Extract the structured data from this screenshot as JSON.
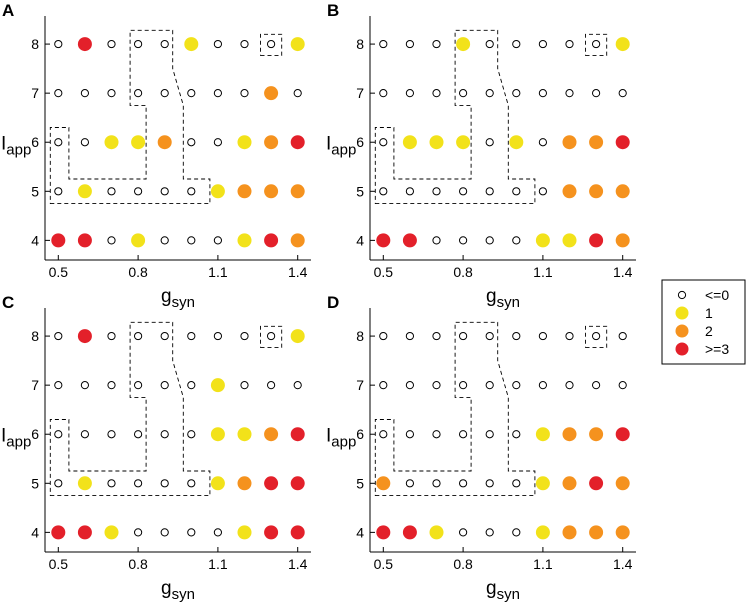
{
  "legend": {
    "items": [
      {
        "label": "<=0",
        "color": "#ffffff",
        "marker": "open"
      },
      {
        "label": "1",
        "color": "#f2e21a",
        "marker": "filled"
      },
      {
        "label": "2",
        "color": "#f5921e",
        "marker": "filled"
      },
      {
        "label": ">=3",
        "color": "#e3202a",
        "marker": "filled"
      }
    ]
  },
  "chart_data": [
    {
      "type": "scatter",
      "panel": "A",
      "xlabel": "g",
      "xlabel_sub": "syn",
      "ylabel": "I",
      "ylabel_sub": "app",
      "x": [
        0.5,
        0.6,
        0.7,
        0.8,
        0.9,
        1.0,
        1.1,
        1.2,
        1.3,
        1.4
      ],
      "y": [
        4,
        5,
        6,
        7,
        8
      ],
      "xticks": [
        0.5,
        0.8,
        1.1,
        1.4
      ],
      "xtick_labels": [
        "0.5",
        "0.8",
        "1.1",
        "1.4"
      ],
      "yticks": [
        4,
        5,
        6,
        7,
        8
      ],
      "ytick_labels": [
        "4",
        "5",
        "6",
        "7",
        "8"
      ],
      "xlim": [
        0.45,
        1.45
      ],
      "ylim": [
        3.6,
        8.45
      ],
      "categories": {
        "-1": "<=0",
        "1": "1",
        "2": "2",
        "3": ">=3"
      },
      "values": [
        [
          3,
          3,
          -1,
          1,
          -1,
          -1,
          -1,
          1,
          3,
          2
        ],
        [
          -1,
          1,
          -1,
          -1,
          -1,
          -1,
          1,
          2,
          2,
          2
        ],
        [
          -1,
          -1,
          1,
          1,
          2,
          -1,
          -1,
          1,
          2,
          3
        ],
        [
          -1,
          -1,
          -1,
          -1,
          -1,
          -1,
          -1,
          -1,
          2,
          -1
        ],
        [
          -1,
          3,
          -1,
          -1,
          -1,
          1,
          -1,
          -1,
          -1,
          1
        ]
      ],
      "dashed_boxes": [
        [
          [
            0.47,
            4.75
          ],
          [
            1.07,
            4.75
          ],
          [
            1.07,
            5.25
          ],
          [
            0.97,
            5.25
          ],
          [
            0.97,
            6.75
          ],
          [
            0.93,
            7.5
          ],
          [
            0.93,
            8.28
          ],
          [
            0.77,
            8.28
          ],
          [
            0.77,
            6.75
          ],
          [
            0.83,
            6.75
          ],
          [
            0.83,
            5.25
          ],
          [
            0.54,
            5.25
          ],
          [
            0.54,
            6.3
          ],
          [
            0.47,
            6.3
          ]
        ],
        [
          [
            1.26,
            7.77
          ],
          [
            1.34,
            7.77
          ],
          [
            1.34,
            8.2
          ],
          [
            1.26,
            8.2
          ]
        ]
      ]
    },
    {
      "type": "scatter",
      "panel": "B",
      "xlabel": "g",
      "xlabel_sub": "syn",
      "ylabel": "I",
      "ylabel_sub": "app",
      "x": [
        0.5,
        0.6,
        0.7,
        0.8,
        0.9,
        1.0,
        1.1,
        1.2,
        1.3,
        1.4
      ],
      "y": [
        4,
        5,
        6,
        7,
        8
      ],
      "xticks": [
        0.5,
        0.8,
        1.1,
        1.4
      ],
      "xtick_labels": [
        "0.5",
        "0.8",
        "1.1",
        "1.4"
      ],
      "yticks": [
        4,
        5,
        6,
        7,
        8
      ],
      "ytick_labels": [
        "4",
        "5",
        "6",
        "7",
        "8"
      ],
      "xlim": [
        0.45,
        1.45
      ],
      "ylim": [
        3.6,
        8.45
      ],
      "categories": {
        "-1": "<=0",
        "1": "1",
        "2": "2",
        "3": ">=3"
      },
      "values": [
        [
          3,
          3,
          -1,
          -1,
          -1,
          -1,
          1,
          1,
          3,
          2
        ],
        [
          -1,
          -1,
          -1,
          -1,
          -1,
          -1,
          -1,
          2,
          2,
          2
        ],
        [
          -1,
          1,
          1,
          1,
          -1,
          1,
          -1,
          2,
          2,
          3
        ],
        [
          -1,
          -1,
          -1,
          -1,
          -1,
          -1,
          -1,
          -1,
          -1,
          -1
        ],
        [
          -1,
          -1,
          -1,
          1,
          -1,
          -1,
          -1,
          -1,
          -1,
          1
        ]
      ],
      "dashed_boxes": [
        [
          [
            0.47,
            4.75
          ],
          [
            1.07,
            4.75
          ],
          [
            1.07,
            5.25
          ],
          [
            0.97,
            5.25
          ],
          [
            0.97,
            6.75
          ],
          [
            0.93,
            7.5
          ],
          [
            0.93,
            8.28
          ],
          [
            0.77,
            8.28
          ],
          [
            0.77,
            6.75
          ],
          [
            0.83,
            6.75
          ],
          [
            0.83,
            5.25
          ],
          [
            0.54,
            5.25
          ],
          [
            0.54,
            6.3
          ],
          [
            0.47,
            6.3
          ]
        ],
        [
          [
            1.26,
            7.77
          ],
          [
            1.34,
            7.77
          ],
          [
            1.34,
            8.2
          ],
          [
            1.26,
            8.2
          ]
        ]
      ]
    },
    {
      "type": "scatter",
      "panel": "C",
      "xlabel": "g",
      "xlabel_sub": "syn",
      "ylabel": "I",
      "ylabel_sub": "app",
      "x": [
        0.5,
        0.6,
        0.7,
        0.8,
        0.9,
        1.0,
        1.1,
        1.2,
        1.3,
        1.4
      ],
      "y": [
        4,
        5,
        6,
        7,
        8
      ],
      "xticks": [
        0.5,
        0.8,
        1.1,
        1.4
      ],
      "xtick_labels": [
        "0.5",
        "0.8",
        "1.1",
        "1.4"
      ],
      "yticks": [
        4,
        5,
        6,
        7,
        8
      ],
      "ytick_labels": [
        "4",
        "5",
        "6",
        "7",
        "8"
      ],
      "xlim": [
        0.45,
        1.45
      ],
      "ylim": [
        3.6,
        8.45
      ],
      "categories": {
        "-1": "<=0",
        "1": "1",
        "2": "2",
        "3": ">=3"
      },
      "values": [
        [
          3,
          3,
          1,
          -1,
          -1,
          -1,
          -1,
          1,
          3,
          3
        ],
        [
          -1,
          1,
          -1,
          -1,
          -1,
          -1,
          1,
          2,
          3,
          3
        ],
        [
          -1,
          -1,
          -1,
          -1,
          -1,
          -1,
          1,
          1,
          2,
          3
        ],
        [
          -1,
          -1,
          -1,
          -1,
          -1,
          -1,
          1,
          -1,
          -1,
          -1
        ],
        [
          -1,
          3,
          -1,
          -1,
          -1,
          -1,
          -1,
          -1,
          -1,
          1
        ]
      ],
      "dashed_boxes": [
        [
          [
            0.47,
            4.75
          ],
          [
            1.07,
            4.75
          ],
          [
            1.07,
            5.25
          ],
          [
            0.97,
            5.25
          ],
          [
            0.97,
            6.75
          ],
          [
            0.93,
            7.5
          ],
          [
            0.93,
            8.28
          ],
          [
            0.77,
            8.28
          ],
          [
            0.77,
            6.75
          ],
          [
            0.83,
            6.75
          ],
          [
            0.83,
            5.25
          ],
          [
            0.54,
            5.25
          ],
          [
            0.54,
            6.3
          ],
          [
            0.47,
            6.3
          ]
        ],
        [
          [
            1.26,
            7.77
          ],
          [
            1.34,
            7.77
          ],
          [
            1.34,
            8.2
          ],
          [
            1.26,
            8.2
          ]
        ]
      ]
    },
    {
      "type": "scatter",
      "panel": "D",
      "xlabel": "g",
      "xlabel_sub": "syn",
      "ylabel": "I",
      "ylabel_sub": "app",
      "x": [
        0.5,
        0.6,
        0.7,
        0.8,
        0.9,
        1.0,
        1.1,
        1.2,
        1.3,
        1.4
      ],
      "y": [
        4,
        5,
        6,
        7,
        8
      ],
      "xticks": [
        0.5,
        0.8,
        1.1,
        1.4
      ],
      "xtick_labels": [
        "0.5",
        "0.8",
        "1.1",
        "1.4"
      ],
      "yticks": [
        4,
        5,
        6,
        7,
        8
      ],
      "ytick_labels": [
        "4",
        "5",
        "6",
        "7",
        "8"
      ],
      "xlim": [
        0.45,
        1.45
      ],
      "ylim": [
        3.6,
        8.45
      ],
      "categories": {
        "-1": "<=0",
        "1": "1",
        "2": "2",
        "3": ">=3"
      },
      "values": [
        [
          3,
          3,
          1,
          -1,
          -1,
          -1,
          1,
          2,
          2,
          2
        ],
        [
          2,
          -1,
          -1,
          -1,
          -1,
          -1,
          1,
          2,
          3,
          2
        ],
        [
          -1,
          -1,
          -1,
          -1,
          -1,
          -1,
          1,
          2,
          2,
          3
        ],
        [
          -1,
          -1,
          -1,
          -1,
          -1,
          -1,
          -1,
          -1,
          -1,
          -1
        ],
        [
          -1,
          -1,
          -1,
          -1,
          -1,
          -1,
          -1,
          -1,
          -1,
          -1
        ]
      ],
      "dashed_boxes": [
        [
          [
            0.47,
            4.75
          ],
          [
            1.07,
            4.75
          ],
          [
            1.07,
            5.25
          ],
          [
            0.97,
            5.25
          ],
          [
            0.97,
            6.75
          ],
          [
            0.93,
            7.5
          ],
          [
            0.93,
            8.28
          ],
          [
            0.77,
            8.28
          ],
          [
            0.77,
            6.75
          ],
          [
            0.83,
            6.75
          ],
          [
            0.83,
            5.25
          ],
          [
            0.54,
            5.25
          ],
          [
            0.54,
            6.3
          ],
          [
            0.47,
            6.3
          ]
        ],
        [
          [
            1.26,
            7.77
          ],
          [
            1.34,
            7.77
          ],
          [
            1.34,
            8.2
          ],
          [
            1.26,
            8.2
          ]
        ]
      ]
    }
  ]
}
